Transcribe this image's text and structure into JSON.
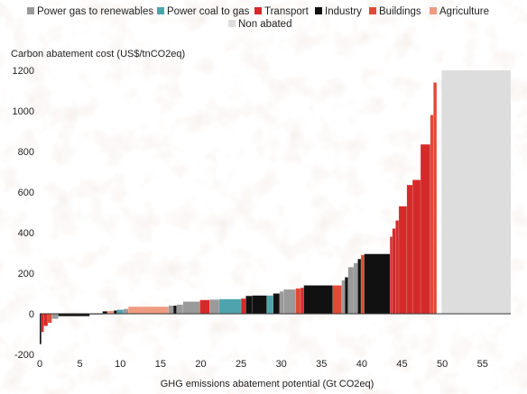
{
  "chart_data": {
    "type": "bar",
    "variant": "marginal-abatement-cost-curve",
    "ylabel": "Carbon abatement cost (US$/tnCO2eq)",
    "xlabel": "GHG emissions abatement potential (Gt CO2eq)",
    "xlim": [
      0,
      58.5
    ],
    "ylim": [
      -200,
      1200
    ],
    "xticks": [
      0,
      5,
      10,
      15,
      20,
      25,
      30,
      35,
      40,
      45,
      50,
      55
    ],
    "yticks": [
      -200,
      0,
      200,
      400,
      600,
      800,
      1000,
      1200
    ],
    "legend_position": "top",
    "series": [
      {
        "name": "Power gas to renewables",
        "color": "#9a9a9a"
      },
      {
        "name": "Power coal to gas",
        "color": "#4fa3ad"
      },
      {
        "name": "Transport",
        "color": "#d42a2a"
      },
      {
        "name": "Industry",
        "color": "#111111"
      },
      {
        "name": "Buildings",
        "color": "#e04a36"
      },
      {
        "name": "Agriculture",
        "color": "#ee9b80"
      },
      {
        "name": "Non abated",
        "color": "#dddddd"
      }
    ],
    "segments": [
      {
        "x0": 0.0,
        "x1": 0.2,
        "value": -150,
        "category": "Industry"
      },
      {
        "x0": 0.2,
        "x1": 0.5,
        "value": -90,
        "category": "Transport"
      },
      {
        "x0": 0.5,
        "x1": 1.0,
        "value": -60,
        "category": "Transport"
      },
      {
        "x0": 1.0,
        "x1": 1.5,
        "value": -45,
        "category": "Buildings"
      },
      {
        "x0": 1.5,
        "x1": 2.3,
        "value": -25,
        "category": "Power gas to renewables"
      },
      {
        "x0": 2.3,
        "x1": 6.2,
        "value": -12,
        "category": "Industry"
      },
      {
        "x0": 6.2,
        "x1": 7.8,
        "value": -5,
        "category": "Power gas to renewables"
      },
      {
        "x0": 7.8,
        "x1": 8.4,
        "value": 12,
        "category": "Industry"
      },
      {
        "x0": 8.4,
        "x1": 9.2,
        "value": 14,
        "category": "Agriculture"
      },
      {
        "x0": 9.2,
        "x1": 9.6,
        "value": 16,
        "category": "Industry"
      },
      {
        "x0": 9.6,
        "x1": 10.4,
        "value": 20,
        "category": "Power coal to gas"
      },
      {
        "x0": 10.4,
        "x1": 11.0,
        "value": 24,
        "category": "Power gas to renewables"
      },
      {
        "x0": 11.0,
        "x1": 16.0,
        "value": 35,
        "category": "Agriculture"
      },
      {
        "x0": 16.0,
        "x1": 16.6,
        "value": 40,
        "category": "Power gas to renewables"
      },
      {
        "x0": 16.6,
        "x1": 17.0,
        "value": 40,
        "category": "Industry"
      },
      {
        "x0": 17.0,
        "x1": 17.8,
        "value": 45,
        "category": "Power gas to renewables"
      },
      {
        "x0": 17.8,
        "x1": 19.9,
        "value": 60,
        "category": "Power gas to renewables"
      },
      {
        "x0": 19.9,
        "x1": 21.1,
        "value": 68,
        "category": "Transport"
      },
      {
        "x0": 21.1,
        "x1": 22.3,
        "value": 70,
        "category": "Power gas to renewables"
      },
      {
        "x0": 22.3,
        "x1": 25.0,
        "value": 72,
        "category": "Power coal to gas"
      },
      {
        "x0": 25.0,
        "x1": 25.6,
        "value": 75,
        "category": "Transport"
      },
      {
        "x0": 25.6,
        "x1": 26.4,
        "value": 88,
        "category": "Industry"
      },
      {
        "x0": 26.4,
        "x1": 28.2,
        "value": 90,
        "category": "Industry"
      },
      {
        "x0": 28.2,
        "x1": 29.0,
        "value": 90,
        "category": "Power coal to gas"
      },
      {
        "x0": 29.0,
        "x1": 29.8,
        "value": 100,
        "category": "Industry"
      },
      {
        "x0": 29.8,
        "x1": 30.3,
        "value": 110,
        "category": "Power gas to renewables"
      },
      {
        "x0": 30.3,
        "x1": 31.8,
        "value": 120,
        "category": "Power gas to renewables"
      },
      {
        "x0": 31.8,
        "x1": 32.4,
        "value": 125,
        "category": "Buildings"
      },
      {
        "x0": 32.4,
        "x1": 32.8,
        "value": 128,
        "category": "Transport"
      },
      {
        "x0": 32.8,
        "x1": 36.4,
        "value": 140,
        "category": "Industry"
      },
      {
        "x0": 36.4,
        "x1": 37.5,
        "value": 140,
        "category": "Buildings"
      },
      {
        "x0": 37.5,
        "x1": 37.9,
        "value": 165,
        "category": "Power gas to renewables"
      },
      {
        "x0": 37.9,
        "x1": 38.3,
        "value": 180,
        "category": "Industry"
      },
      {
        "x0": 38.3,
        "x1": 39.0,
        "value": 230,
        "category": "Power gas to renewables"
      },
      {
        "x0": 39.0,
        "x1": 39.5,
        "value": 250,
        "category": "Power gas to renewables"
      },
      {
        "x0": 39.5,
        "x1": 39.9,
        "value": 270,
        "category": "Industry"
      },
      {
        "x0": 39.9,
        "x1": 40.3,
        "value": 290,
        "category": "Buildings"
      },
      {
        "x0": 40.3,
        "x1": 43.5,
        "value": 295,
        "category": "Industry"
      },
      {
        "x0": 43.5,
        "x1": 43.8,
        "value": 380,
        "category": "Transport"
      },
      {
        "x0": 43.8,
        "x1": 44.2,
        "value": 420,
        "category": "Transport"
      },
      {
        "x0": 44.2,
        "x1": 44.6,
        "value": 460,
        "category": "Transport"
      },
      {
        "x0": 44.6,
        "x1": 45.6,
        "value": 530,
        "category": "Transport"
      },
      {
        "x0": 45.6,
        "x1": 46.3,
        "value": 635,
        "category": "Transport"
      },
      {
        "x0": 46.3,
        "x1": 47.3,
        "value": 660,
        "category": "Transport"
      },
      {
        "x0": 47.3,
        "x1": 48.5,
        "value": 835,
        "category": "Transport"
      },
      {
        "x0": 48.5,
        "x1": 48.9,
        "value": 980,
        "category": "Buildings"
      },
      {
        "x0": 48.9,
        "x1": 49.3,
        "value": 1140,
        "category": "Buildings"
      },
      {
        "x0": 49.9,
        "x1": 58.5,
        "value": 1200,
        "category": "Non abated"
      }
    ]
  }
}
